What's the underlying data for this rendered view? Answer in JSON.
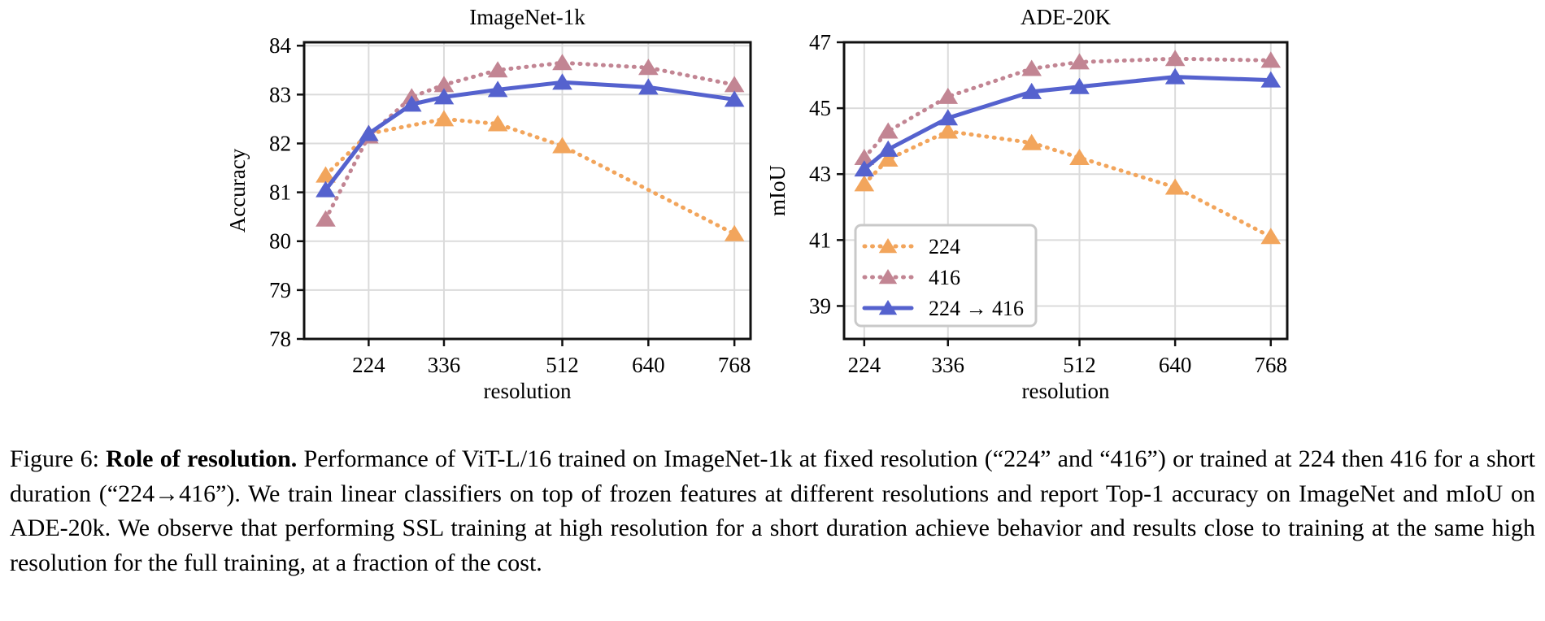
{
  "caption": {
    "prefix": "Figure 6: ",
    "bold": "Role of resolution.",
    "body": " Performance of ViT-L/16 trained on ImageNet-1k at fixed resolution (“224” and “416”) or trained at 224 then 416 for a short duration (“224→416”). We train linear classifiers on top of frozen features at different resolutions and report Top-1 accuracy on ImageNet and mIoU on ADE-20k. We observe that performing SSL training at high resolution for a short duration achieve behavior and results close to training at the same high resolution for the full training, at a fraction of the cost."
  },
  "colors": {
    "series_224": "#F2A55C",
    "series_416": "#C28593",
    "series_224to416": "#5562CE",
    "grid": "#DBDBDB",
    "spine": "#111111",
    "legend_border": "#C9C9C9",
    "background": "#FFFFFF"
  },
  "chart_data": [
    {
      "type": "line",
      "title": "ImageNet-1k",
      "xlabel": "resolution",
      "ylabel": "Accuracy",
      "xlim": [
        128,
        792
      ],
      "ylim": [
        78,
        84.07
      ],
      "xticks": [
        224,
        336,
        512,
        640,
        768
      ],
      "yticks": [
        78,
        79,
        80,
        81,
        82,
        83,
        84
      ],
      "grid": true,
      "legend": false,
      "series": [
        {
          "name": "224",
          "style": "dotted",
          "color_key": "series_224",
          "x": [
            160,
            224,
            336,
            416,
            512,
            768
          ],
          "y": [
            81.35,
            82.2,
            82.5,
            82.4,
            81.95,
            80.15
          ]
        },
        {
          "name": "416",
          "style": "dotted",
          "color_key": "series_416",
          "x": [
            160,
            224,
            288,
            336,
            416,
            512,
            640,
            768
          ],
          "y": [
            80.45,
            82.15,
            82.95,
            83.2,
            83.5,
            83.65,
            83.55,
            83.2
          ]
        },
        {
          "name": "224 → 416",
          "style": "solid",
          "color_key": "series_224to416",
          "x": [
            160,
            224,
            288,
            336,
            416,
            512,
            640,
            768
          ],
          "y": [
            81.05,
            82.2,
            82.8,
            82.95,
            83.1,
            83.25,
            83.15,
            82.9
          ]
        }
      ]
    },
    {
      "type": "line",
      "title": "ADE-20K",
      "xlabel": "resolution",
      "ylabel": "mIoU",
      "xlim": [
        197,
        790
      ],
      "ylim": [
        38,
        47
      ],
      "xticks": [
        224,
        336,
        512,
        640,
        768
      ],
      "yticks": [
        39,
        41,
        43,
        45,
        47
      ],
      "grid": true,
      "legend": true,
      "series": [
        {
          "name": "224",
          "style": "dotted",
          "color_key": "series_224",
          "x": [
            224,
            256,
            336,
            448,
            512,
            640,
            768
          ],
          "y": [
            42.7,
            43.45,
            44.3,
            43.95,
            43.5,
            42.6,
            41.1
          ]
        },
        {
          "name": "416",
          "style": "dotted",
          "color_key": "series_416",
          "x": [
            224,
            256,
            336,
            448,
            512,
            640,
            768
          ],
          "y": [
            43.5,
            44.3,
            45.35,
            46.2,
            46.4,
            46.5,
            46.45
          ]
        },
        {
          "name": "224 → 416",
          "style": "solid",
          "color_key": "series_224to416",
          "x": [
            224,
            256,
            336,
            448,
            512,
            640,
            768
          ],
          "y": [
            43.15,
            43.75,
            44.7,
            45.5,
            45.65,
            45.95,
            45.85
          ]
        }
      ]
    }
  ]
}
